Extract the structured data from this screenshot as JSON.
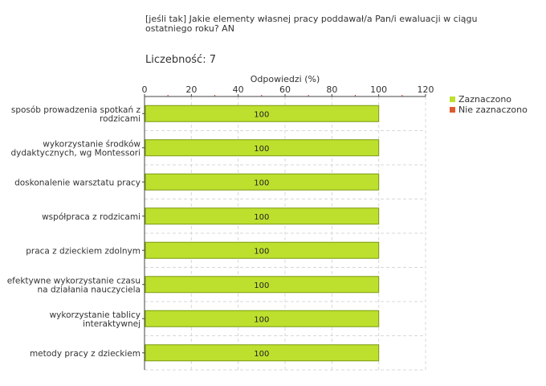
{
  "title": "[jeśli tak] Jakie elementy własnej pracy poddawał/a Pan/i ewaluacji w ciągu ostatniego roku?  AN",
  "count_label": "Liczebność:",
  "count_value": "7",
  "colors": {
    "zaznaczono": "#bde02e",
    "zaznaczono_border": "#7a9a10",
    "nie_zaznaczono": "#e05a30",
    "grid": "#d8d8d8",
    "axis": "#444444",
    "tick_red": "#c0392b"
  },
  "chart_data": {
    "type": "bar",
    "orientation": "horizontal",
    "title": "[jeśli tak] Jakie elementy własnej pracy poddawał/a Pan/i ewaluacji w ciągu ostatniego roku?  AN",
    "xlabel": "Odpowiedzi (%)",
    "ylabel": "",
    "xlim": [
      0,
      120
    ],
    "xticks": [
      0,
      20,
      40,
      60,
      80,
      100,
      120
    ],
    "grid": true,
    "legend_position": "top-right",
    "categories": [
      [
        "sposób prowadzenia spotkań z",
        "rodzicami"
      ],
      [
        "wykorzystanie środków",
        "dydaktycznych, wg Montessori"
      ],
      [
        "doskonalenie warsztatu pracy"
      ],
      [
        "współpraca z rodzicami"
      ],
      [
        "praca z dzieckiem zdolnym"
      ],
      [
        "efektywne wykorzystanie czasu",
        "na działania nauczyciela"
      ],
      [
        "wykorzystanie tablicy",
        "interaktywnej"
      ],
      [
        "metody pracy z dzieckiem"
      ]
    ],
    "series": [
      {
        "name": "Zaznaczono",
        "values": [
          100,
          100,
          100,
          100,
          100,
          100,
          100,
          100
        ],
        "labels": [
          "100",
          "100",
          "100",
          "100",
          "100",
          "100",
          "100",
          "100"
        ]
      },
      {
        "name": "Nie zaznaczono",
        "values": [
          0,
          0,
          0,
          0,
          0,
          0,
          0,
          0
        ]
      }
    ]
  }
}
